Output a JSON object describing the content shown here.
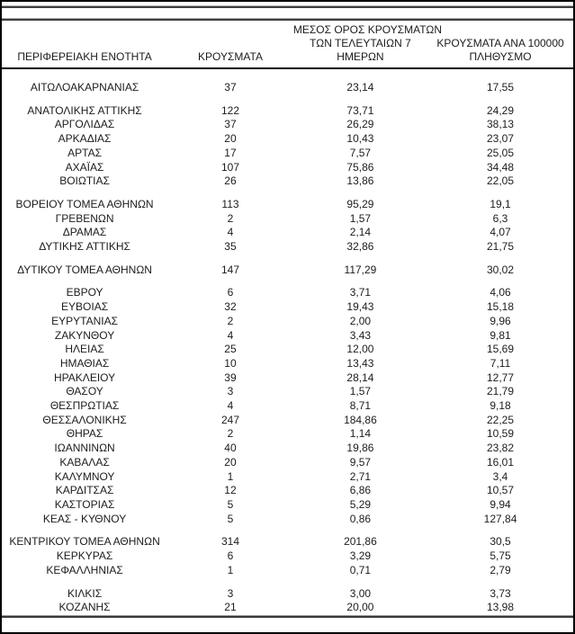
{
  "colors": {
    "text": "#1c1c1c",
    "border": "#000000",
    "rule_gray_light": "#a8a8a8",
    "rule_gray_dark": "#3f3f3f",
    "background": "#ffffff"
  },
  "table": {
    "header": {
      "col1": "ΠΕΡΙΦΕΡΕΙΑΚΗ ΕΝΟΤΗΤΑ",
      "col2": "ΚΡΟΥΣΜΑΤΑ",
      "col3_lines": [
        "ΜΕΣΟΣ ΟΡΟΣ ΚΡΟΥΣΜΑΤΩΝ",
        "ΤΩΝ ΤΕΛΕΥΤΑΙΩΝ 7",
        "ΗΜΕΡΩΝ"
      ],
      "col4_lines": [
        "ΚΡΟΥΣΜΑΤΑ ΑΝΑ 100000",
        "ΠΛΗΘΥΣΜΟ"
      ]
    },
    "groups": [
      [
        [
          "ΑΙΤΩΛΟΑΚΑΡΝΑΝΙΑΣ",
          "37",
          "23,14",
          "17,55"
        ]
      ],
      [
        [
          "ΑΝΑΤΟΛΙΚΗΣ ΑΤΤΙΚΗΣ",
          "122",
          "73,71",
          "24,29"
        ],
        [
          "ΑΡΓΟΛΙΔΑΣ",
          "37",
          "26,29",
          "38,13"
        ],
        [
          "ΑΡΚΑΔΙΑΣ",
          "20",
          "10,43",
          "23,07"
        ],
        [
          "ΑΡΤΑΣ",
          "17",
          "7,57",
          "25,05"
        ],
        [
          "ΑΧΑΪΑΣ",
          "107",
          "75,86",
          "34,48"
        ],
        [
          "ΒΟΙΩΤΙΑΣ",
          "26",
          "13,86",
          "22,05"
        ]
      ],
      [
        [
          "ΒΟΡΕΙΟΥ ΤΟΜΕΑ ΑΘΗΝΩΝ",
          "113",
          "95,29",
          "19,1"
        ],
        [
          "ΓΡΕΒΕΝΩΝ",
          "2",
          "1,57",
          "6,3"
        ],
        [
          "ΔΡΑΜΑΣ",
          "4",
          "2,14",
          "4,07"
        ],
        [
          "ΔΥΤΙΚΗΣ ΑΤΤΙΚΗΣ",
          "35",
          "32,86",
          "21,75"
        ]
      ],
      [
        [
          "ΔΥΤΙΚΟΥ ΤΟΜΕΑ ΑΘΗΝΩΝ",
          "147",
          "117,29",
          "30,02"
        ]
      ],
      [
        [
          "ΕΒΡΟΥ",
          "6",
          "3,71",
          "4,06"
        ],
        [
          "ΕΥΒΟΙΑΣ",
          "32",
          "19,43",
          "15,18"
        ],
        [
          "ΕΥΡΥΤΑΝΙΑΣ",
          "2",
          "2,00",
          "9,96"
        ],
        [
          "ΖΑΚΥΝΘΟΥ",
          "4",
          "3,43",
          "9,81"
        ],
        [
          "ΗΛΕΙΑΣ",
          "25",
          "12,00",
          "15,69"
        ],
        [
          "ΗΜΑΘΙΑΣ",
          "10",
          "13,43",
          "7,11"
        ],
        [
          "ΗΡΑΚΛΕΙΟΥ",
          "39",
          "28,14",
          "12,77"
        ],
        [
          "ΘΑΣΟΥ",
          "3",
          "1,57",
          "21,79"
        ],
        [
          "ΘΕΣΠΡΩΤΙΑΣ",
          "4",
          "8,71",
          "9,18"
        ],
        [
          "ΘΕΣΣΑΛΟΝΙΚΗΣ",
          "247",
          "184,86",
          "22,25"
        ],
        [
          "ΘΗΡΑΣ",
          "2",
          "1,14",
          "10,59"
        ],
        [
          "ΙΩΑΝΝΙΝΩΝ",
          "40",
          "19,86",
          "23,82"
        ],
        [
          "ΚΑΒΑΛΑΣ",
          "20",
          "9,57",
          "16,01"
        ],
        [
          "ΚΑΛΥΜΝΟΥ",
          "1",
          "2,71",
          "3,4"
        ],
        [
          "ΚΑΡΔΙΤΣΑΣ",
          "12",
          "6,86",
          "10,57"
        ],
        [
          "ΚΑΣΤΟΡΙΑΣ",
          "5",
          "5,29",
          "9,94"
        ],
        [
          "ΚΕΑΣ - ΚΥΘΝΟΥ",
          "5",
          "0,86",
          "127,84"
        ]
      ],
      [
        [
          "ΚΕΝΤΡΙΚΟΥ ΤΟΜΕΑ ΑΘΗΝΩΝ",
          "314",
          "201,86",
          "30,5"
        ],
        [
          "ΚΕΡΚΥΡΑΣ",
          "6",
          "3,29",
          "5,75"
        ],
        [
          "ΚΕΦΑΛΛΗΝΙΑΣ",
          "1",
          "0,71",
          "2,79"
        ]
      ],
      [
        [
          "ΚΙΛΚΙΣ",
          "3",
          "3,00",
          "3,73"
        ],
        [
          "ΚΟΖΑΝΗΣ",
          "21",
          "20,00",
          "13,98"
        ]
      ]
    ]
  }
}
